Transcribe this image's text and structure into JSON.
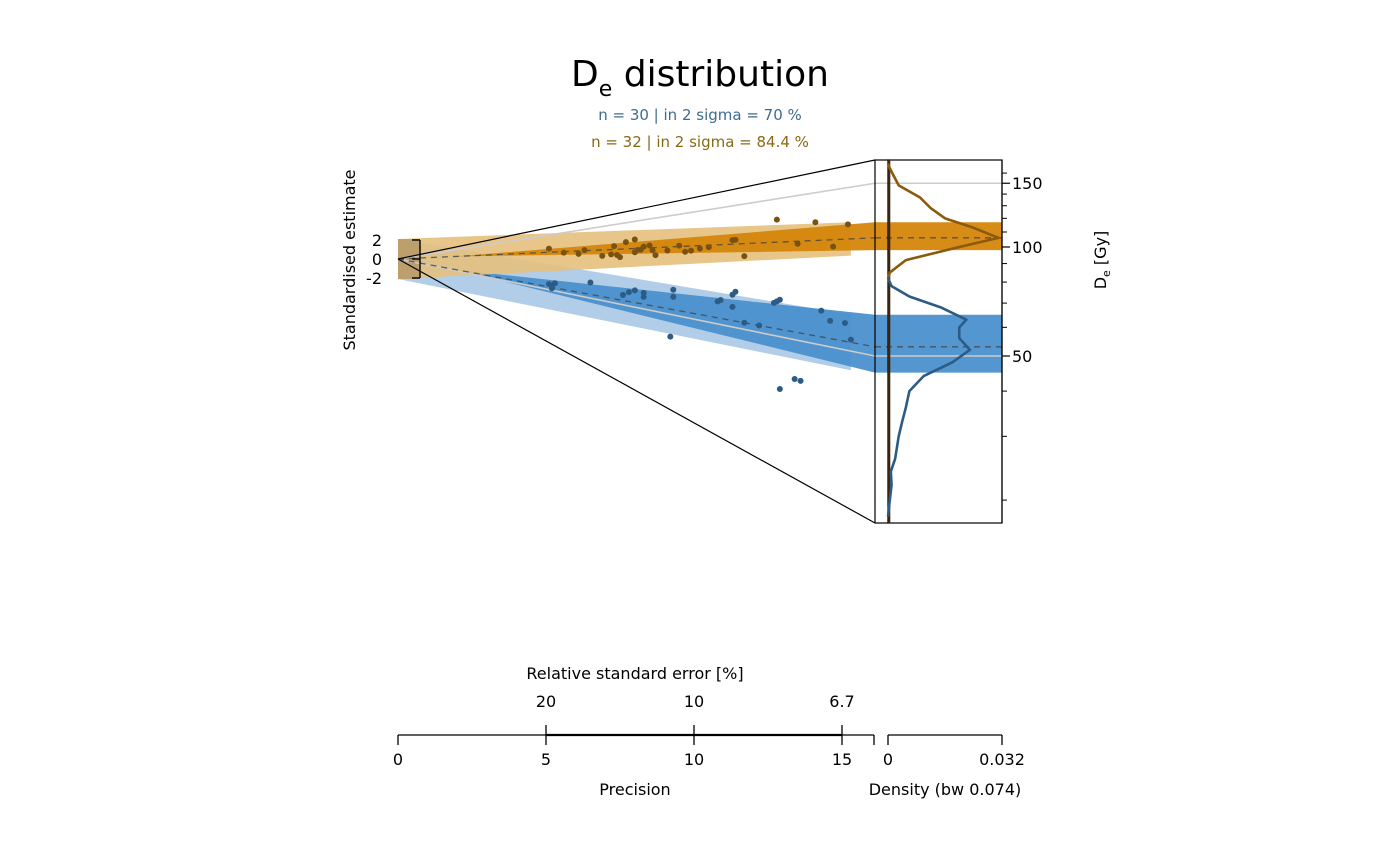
{
  "chart_data": {
    "type": "scatter",
    "subtype": "abanico",
    "title_main": "D",
    "title_subscript": "e",
    "title_rest": " distribution",
    "stats": [
      {
        "text": "n = 30 | in 2 sigma = 70 %",
        "color": "#3F6C8F"
      },
      {
        "text": "n = 32 | in 2 sigma = 84.4 %",
        "color": "#8B6914"
      }
    ],
    "ylabel": "Standardised estimate",
    "yticks": [
      "2",
      "0",
      "-2"
    ],
    "zlabel_main": "D",
    "zlabel_subscript": "e",
    "zlabel_rest": " [Gy]",
    "zticks": [
      {
        "label": "150",
        "value": 150
      },
      {
        "label": "100",
        "value": 100
      },
      {
        "label": "50",
        "value": 50
      }
    ],
    "z_minor_ticks": [
      160,
      140,
      130,
      120,
      110,
      90,
      80,
      70,
      60,
      40,
      30,
      20
    ],
    "zlim": [
      15,
      170
    ],
    "xlabel": "Precision",
    "xlim": [
      0,
      16
    ],
    "xticks": [
      "0",
      "5",
      "10",
      "15"
    ],
    "xtick_values": [
      0,
      5,
      10,
      15
    ],
    "x2label": "Relative standard error [%]",
    "x2ticks": [
      "20",
      "10",
      "6.7"
    ],
    "density_label": "Density (bw 0.074)",
    "density_ticks": [
      "0",
      "0.032"
    ],
    "density_max": 0.032,
    "series": [
      {
        "name": "",
        "color": "#2C5C86",
        "band_color": "#4A90CD",
        "band_light": "#A9C8E6",
        "central_value": 53,
        "band_range": [
          45,
          65
        ],
        "points": [
          [
            5.1,
            56
          ],
          [
            5.2,
            52
          ],
          [
            5.3,
            58
          ],
          [
            5.2,
            55
          ],
          [
            6.5,
            64
          ],
          [
            7.6,
            57
          ],
          [
            7.8,
            60
          ],
          [
            8.0,
            62
          ],
          [
            8.3,
            58
          ],
          [
            8.3,
            61
          ],
          [
            9.3,
            66
          ],
          [
            9.3,
            61
          ],
          [
            10.8,
            62
          ],
          [
            10.9,
            63
          ],
          [
            11.3,
            60
          ],
          [
            11.3,
            67
          ],
          [
            11.4,
            69
          ],
          [
            11.7,
            53
          ],
          [
            12.2,
            53
          ],
          [
            12.7,
            65
          ],
          [
            12.8,
            66
          ],
          [
            12.9,
            67
          ],
          [
            14.3,
            64
          ],
          [
            14.6,
            60
          ],
          [
            15.1,
            60
          ],
          [
            9.2,
            39
          ],
          [
            12.9,
            33
          ],
          [
            13.4,
            37
          ],
          [
            13.6,
            37
          ],
          [
            15.3,
            54
          ]
        ]
      },
      {
        "name": "",
        "color": "#7A5210",
        "band_color": "#D4860B",
        "band_light": "#E5C07C",
        "central_value": 106,
        "band_range": [
          98,
          117
        ],
        "points": [
          [
            5.1,
            114
          ],
          [
            5.6,
            104
          ],
          [
            6.1,
            101
          ],
          [
            6.3,
            107
          ],
          [
            6.9,
            97
          ],
          [
            7.2,
            99
          ],
          [
            7.3,
            111
          ],
          [
            7.4,
            98
          ],
          [
            7.5,
            95
          ],
          [
            8.0,
            119
          ],
          [
            8.0,
            101
          ],
          [
            8.1,
            104
          ],
          [
            8.2,
            104
          ],
          [
            8.3,
            108
          ],
          [
            8.5,
            109
          ],
          [
            8.6,
            103
          ],
          [
            8.7,
            97
          ],
          [
            9.1,
            102
          ],
          [
            9.5,
            107
          ],
          [
            9.7,
            100
          ],
          [
            9.9,
            101
          ],
          [
            10.2,
            103
          ],
          [
            10.5,
            104
          ],
          [
            11.3,
            110
          ],
          [
            11.4,
            110
          ],
          [
            11.7,
            95
          ],
          [
            12.8,
            127
          ],
          [
            13.5,
            104
          ],
          [
            14.1,
            121
          ],
          [
            14.7,
            101
          ],
          [
            15.2,
            117
          ],
          [
            7.7,
            116
          ]
        ]
      }
    ],
    "reference_lines": [
      150,
      50
    ],
    "density_curves": [
      {
        "color": "#2C5C86",
        "points": [
          [
            0,
            18
          ],
          [
            0.0005,
            20
          ],
          [
            0.001,
            22
          ],
          [
            0.0008,
            24
          ],
          [
            0.002,
            26
          ],
          [
            0.003,
            30
          ],
          [
            0.004,
            33
          ],
          [
            0.005,
            36
          ],
          [
            0.006,
            40
          ],
          [
            0.01,
            44
          ],
          [
            0.018,
            48
          ],
          [
            0.023,
            52
          ],
          [
            0.02,
            56
          ],
          [
            0.02,
            60
          ],
          [
            0.022,
            63
          ],
          [
            0.015,
            68
          ],
          [
            0.006,
            73
          ],
          [
            0.001,
            78
          ],
          [
            0,
            82
          ]
        ]
      },
      {
        "color": "#8B5A0A",
        "points": [
          [
            0,
            82
          ],
          [
            0.0005,
            85
          ],
          [
            0.005,
            92
          ],
          [
            0.02,
            100
          ],
          [
            0.031,
            106
          ],
          [
            0.024,
            113
          ],
          [
            0.016,
            120
          ],
          [
            0.012,
            128
          ],
          [
            0.009,
            137
          ],
          [
            0.003,
            148
          ],
          [
            0.0005,
            165
          ],
          [
            0,
            170
          ]
        ]
      }
    ]
  }
}
